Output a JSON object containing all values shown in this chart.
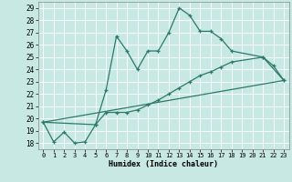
{
  "xlabel": "Humidex (Indice chaleur)",
  "bg_color": "#c8e8e4",
  "line_color": "#2a7a6a",
  "grid_color": "#ffffff",
  "ylim": [
    17.5,
    29.5
  ],
  "xlim": [
    -0.5,
    23.5
  ],
  "yticks": [
    18,
    19,
    20,
    21,
    22,
    23,
    24,
    25,
    26,
    27,
    28,
    29
  ],
  "xticks": [
    0,
    1,
    2,
    3,
    4,
    5,
    6,
    7,
    8,
    9,
    10,
    11,
    12,
    13,
    14,
    15,
    16,
    17,
    18,
    19,
    20,
    21,
    22,
    23
  ],
  "line1_x": [
    0,
    1,
    2,
    3,
    4,
    5,
    6,
    7,
    8,
    9,
    10,
    11,
    12,
    13,
    14,
    15,
    16,
    17,
    18,
    21,
    22,
    23
  ],
  "line1_y": [
    19.7,
    18.1,
    18.9,
    18.0,
    18.1,
    19.5,
    22.3,
    26.7,
    25.5,
    24.0,
    25.5,
    25.5,
    27.0,
    29.0,
    28.4,
    27.1,
    27.1,
    26.5,
    25.5,
    25.0,
    24.3,
    23.1
  ],
  "line2_x": [
    0,
    5,
    6,
    7,
    8,
    9,
    10,
    11,
    12,
    13,
    14,
    15,
    16,
    17,
    18,
    21,
    23
  ],
  "line2_y": [
    19.7,
    19.5,
    20.5,
    20.5,
    20.5,
    20.7,
    21.1,
    21.5,
    22.0,
    22.5,
    23.0,
    23.5,
    23.8,
    24.2,
    24.6,
    25.0,
    23.1
  ],
  "line3_x": [
    0,
    23
  ],
  "line3_y": [
    19.7,
    23.1
  ]
}
